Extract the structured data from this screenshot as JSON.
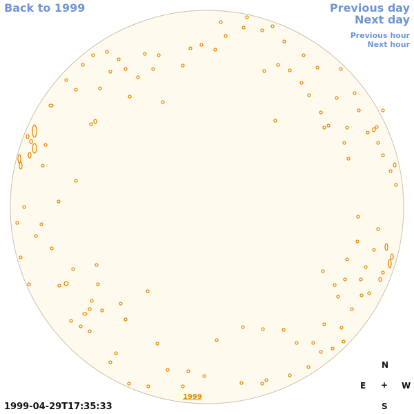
{
  "nav": {
    "back": "Back to 1999",
    "previous_day": "Previous day",
    "next_day": "Next day",
    "previous_hour": "Previous hour",
    "next_hour": "Next hour"
  },
  "disk": {
    "year_label": "1999"
  },
  "timestamp": "1999-04-29T17:35:33",
  "compass": {
    "n": "N",
    "e": "E",
    "center": "+",
    "w": "W",
    "s": "S"
  },
  "colors": {
    "disk_fill": "#fffaee",
    "disk_edge": "#c9c2ad",
    "contour": "#e68a00",
    "link": "#6f95d8"
  }
}
